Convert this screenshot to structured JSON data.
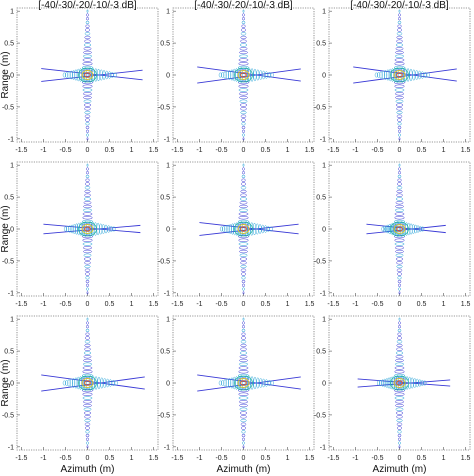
{
  "figure": {
    "column_titles": [
      "[-40/-30/-20/-10/-3 dB]",
      "[-40/-30/-20/-10/-3 dB]",
      "[-40/-30/-20/-10/-3 dB]"
    ],
    "ylabel": "Range (m)",
    "xlabel": "Azimuth (m)"
  },
  "chart_data": [
    {
      "type": "contour",
      "panel": "r1c1",
      "title": "[-40/-30/-20/-10/-3 dB]",
      "ylabel": "Range (m)",
      "xlabel": "",
      "xlim": [
        -1.6,
        1.6
      ],
      "ylim": [
        -1.05,
        1.05
      ],
      "xticks": [
        -1.5,
        -1,
        -0.5,
        0,
        0.5,
        1,
        1.5
      ],
      "yticks": [
        -1,
        -0.5,
        0,
        0.5,
        1
      ],
      "contour_levels_db": [
        -40,
        -30,
        -20,
        -10,
        -3
      ],
      "peak": [
        0,
        0
      ],
      "range_lobe_extent": [
        -1,
        1
      ],
      "azimuth_lobe_extent": [
        -1.05,
        1.25
      ],
      "cross_tilt": 0.08
    },
    {
      "type": "contour",
      "panel": "r1c2",
      "title": "[-40/-30/-20/-10/-3 dB]",
      "ylabel": "",
      "xlabel": "",
      "xlim": [
        -1.6,
        1.6
      ],
      "ylim": [
        -1.05,
        1.05
      ],
      "xticks": [
        -1.5,
        -1,
        -0.5,
        0,
        0.5,
        1,
        1.5
      ],
      "yticks": [
        -1,
        -0.5,
        0,
        0.5,
        1
      ],
      "contour_levels_db": [
        -40,
        -30,
        -20,
        -10,
        -3
      ],
      "peak": [
        0,
        0
      ],
      "range_lobe_extent": [
        -1,
        1
      ],
      "azimuth_lobe_extent": [
        -1.05,
        1.3
      ],
      "cross_tilt": 0.1
    },
    {
      "type": "contour",
      "panel": "r1c3",
      "title": "[-40/-30/-20/-10/-3 dB]",
      "ylabel": "",
      "xlabel": "",
      "xlim": [
        -1.6,
        1.6
      ],
      "ylim": [
        -1.05,
        1.05
      ],
      "xticks": [
        -1.5,
        -1,
        -0.5,
        0,
        0.5,
        1,
        1.5
      ],
      "yticks": [
        -1,
        -0.5,
        0,
        0.5,
        1
      ],
      "contour_levels_db": [
        -40,
        -30,
        -20,
        -10,
        -3
      ],
      "peak": [
        0,
        0
      ],
      "range_lobe_extent": [
        -1,
        1
      ],
      "azimuth_lobe_extent": [
        -1.05,
        1.3
      ],
      "cross_tilt": 0.1
    },
    {
      "type": "contour",
      "panel": "r2c1",
      "title": "",
      "ylabel": "Range (m)",
      "xlabel": "",
      "xlim": [
        -1.6,
        1.6
      ],
      "ylim": [
        -1.05,
        1.05
      ],
      "xticks": [
        -1.5,
        -1,
        -0.5,
        0,
        0.5,
        1,
        1.5
      ],
      "yticks": [
        -1,
        -0.5,
        0,
        0.5,
        1
      ],
      "contour_levels_db": [
        -40,
        -30,
        -20,
        -10,
        -3
      ],
      "peak": [
        0,
        0
      ],
      "range_lobe_extent": [
        -1,
        1
      ],
      "azimuth_lobe_extent": [
        -1.0,
        1.2
      ],
      "cross_tilt": 0.06
    },
    {
      "type": "contour",
      "panel": "r2c2",
      "title": "",
      "ylabel": "",
      "xlabel": "",
      "xlim": [
        -1.6,
        1.6
      ],
      "ylim": [
        -1.05,
        1.05
      ],
      "xticks": [
        -1.5,
        -1,
        -0.5,
        0,
        0.5,
        1,
        1.5
      ],
      "yticks": [
        -1,
        -0.5,
        0,
        0.5,
        1
      ],
      "contour_levels_db": [
        -40,
        -30,
        -20,
        -10,
        -3
      ],
      "peak": [
        0,
        0
      ],
      "range_lobe_extent": [
        -1,
        1
      ],
      "azimuth_lobe_extent": [
        -1.0,
        1.25
      ],
      "cross_tilt": 0.08
    },
    {
      "type": "contour",
      "panel": "r2c3",
      "title": "",
      "ylabel": "",
      "xlabel": "",
      "xlim": [
        -1.6,
        1.6
      ],
      "ylim": [
        -1.05,
        1.05
      ],
      "xticks": [
        -1.5,
        -1,
        -0.5,
        0,
        0.5,
        1,
        1.5
      ],
      "yticks": [
        -1,
        -0.5,
        0,
        0.5,
        1
      ],
      "contour_levels_db": [
        -40,
        -30,
        -20,
        -10,
        -3
      ],
      "peak": [
        0,
        0
      ],
      "range_lobe_extent": [
        -1,
        1
      ],
      "azimuth_lobe_extent": [
        -0.75,
        1.05
      ],
      "cross_tilt": 0.06
    },
    {
      "type": "contour",
      "panel": "r3c1",
      "title": "",
      "ylabel": "Range (m)",
      "xlabel": "Azimuth (m)",
      "xlim": [
        -1.6,
        1.6
      ],
      "ylim": [
        -1.05,
        1.05
      ],
      "xticks": [
        -1.5,
        -1,
        -0.5,
        0,
        0.5,
        1,
        1.5
      ],
      "yticks": [
        -1,
        -0.5,
        0,
        0.5,
        1
      ],
      "contour_levels_db": [
        -40,
        -30,
        -20,
        -10,
        -3
      ],
      "peak": [
        0,
        0
      ],
      "range_lobe_extent": [
        -1,
        1
      ],
      "azimuth_lobe_extent": [
        -1.05,
        1.3
      ],
      "cross_tilt": 0.1
    },
    {
      "type": "contour",
      "panel": "r3c2",
      "title": "",
      "ylabel": "",
      "xlabel": "Azimuth (m)",
      "xlim": [
        -1.6,
        1.6
      ],
      "ylim": [
        -1.05,
        1.05
      ],
      "xticks": [
        -1.5,
        -1,
        -0.5,
        0,
        0.5,
        1,
        1.5
      ],
      "yticks": [
        -1,
        -0.5,
        0,
        0.5,
        1
      ],
      "contour_levels_db": [
        -40,
        -30,
        -20,
        -10,
        -3
      ],
      "peak": [
        0,
        0
      ],
      "range_lobe_extent": [
        -1,
        1
      ],
      "azimuth_lobe_extent": [
        -1.05,
        1.3
      ],
      "cross_tilt": 0.1
    },
    {
      "type": "contour",
      "panel": "r3c3",
      "title": "",
      "ylabel": "",
      "xlabel": "Azimuth (m)",
      "xlim": [
        -1.6,
        1.6
      ],
      "ylim": [
        -1.05,
        1.05
      ],
      "xticks": [
        -1.5,
        -1,
        -0.5,
        0,
        0.5,
        1,
        1.5
      ],
      "yticks": [
        -1,
        -0.5,
        0,
        0.5,
        1
      ],
      "contour_levels_db": [
        -40,
        -30,
        -20,
        -10,
        -3
      ],
      "peak": [
        0,
        0
      ],
      "range_lobe_extent": [
        -1,
        1
      ],
      "azimuth_lobe_extent": [
        -0.95,
        1.15
      ],
      "cross_tilt": 0.05
    }
  ],
  "colors": {
    "outer_contour": "#3a3ad6",
    "mid_contour": "#1e9fd6",
    "inner_contour": "#2fb8a0",
    "core_contour": "#d8c21c",
    "peak_contour": "#e8661c",
    "axes_box": "#777777"
  }
}
